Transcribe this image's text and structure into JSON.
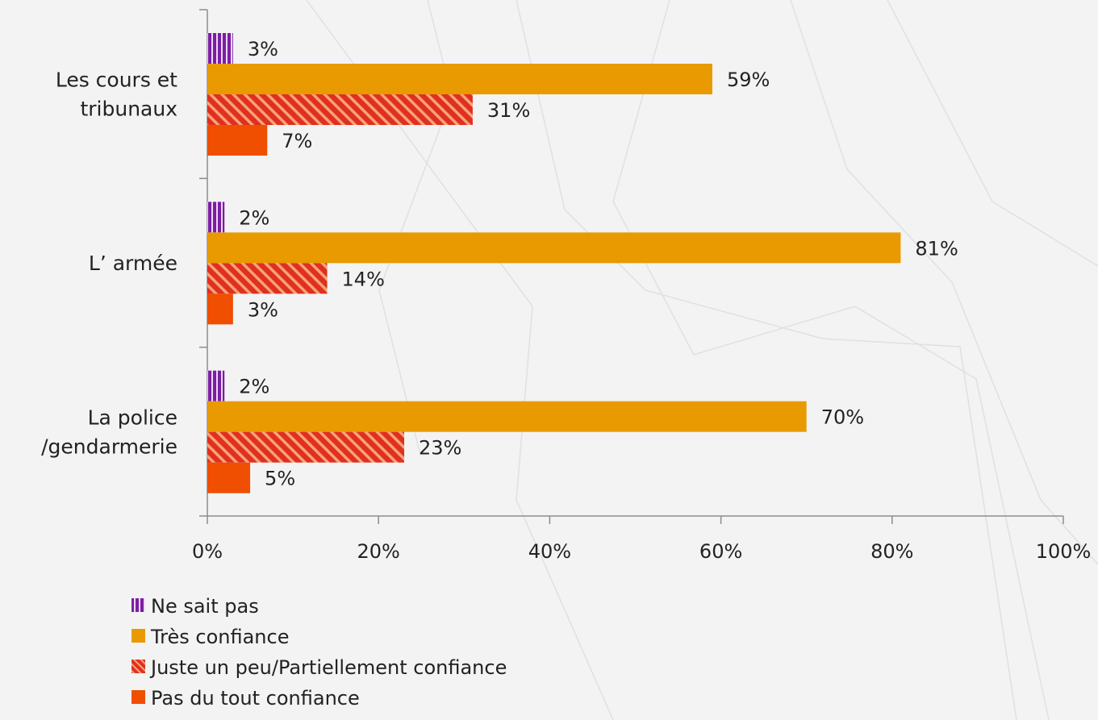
{
  "chart_data": {
    "type": "bar",
    "orientation": "horizontal",
    "categories": [
      "Les cours et tribunaux",
      "L’ armée",
      "La police /gendarmerie"
    ],
    "category_lines": [
      [
        "Les cours et",
        "tribunaux"
      ],
      [
        "L’ armée"
      ],
      [
        "La police",
        "/gendarmerie"
      ]
    ],
    "series": [
      {
        "name": "Ne sait pas",
        "values": [
          3,
          2,
          2
        ],
        "labels": [
          "3%",
          "2%",
          "2%"
        ],
        "color": "#7a1fa2",
        "pattern": "vertical-stripes"
      },
      {
        "name": "Très confiance",
        "values": [
          59,
          81,
          70
        ],
        "labels": [
          "59%",
          "81%",
          "70%"
        ],
        "color": "#e89a00",
        "pattern": "solid"
      },
      {
        "name": "Juste un peu/Partiellement confiance",
        "values": [
          31,
          14,
          23
        ],
        "labels": [
          "31%",
          "14%",
          "23%"
        ],
        "color": "#e0301e",
        "pattern": "diagonal-stripes"
      },
      {
        "name": "Pas du tout confiance",
        "values": [
          7,
          3,
          5
        ],
        "labels": [
          "7%",
          "3%",
          "5%"
        ],
        "color": "#f04e00",
        "pattern": "solid"
      }
    ],
    "xlim": [
      0,
      100
    ],
    "xticks": [
      0,
      20,
      40,
      60,
      80,
      100
    ],
    "xtick_labels": [
      "0%",
      "20%",
      "40%",
      "60%",
      "80%",
      "100%"
    ],
    "grid": false,
    "legend_position": "bottom-left"
  }
}
